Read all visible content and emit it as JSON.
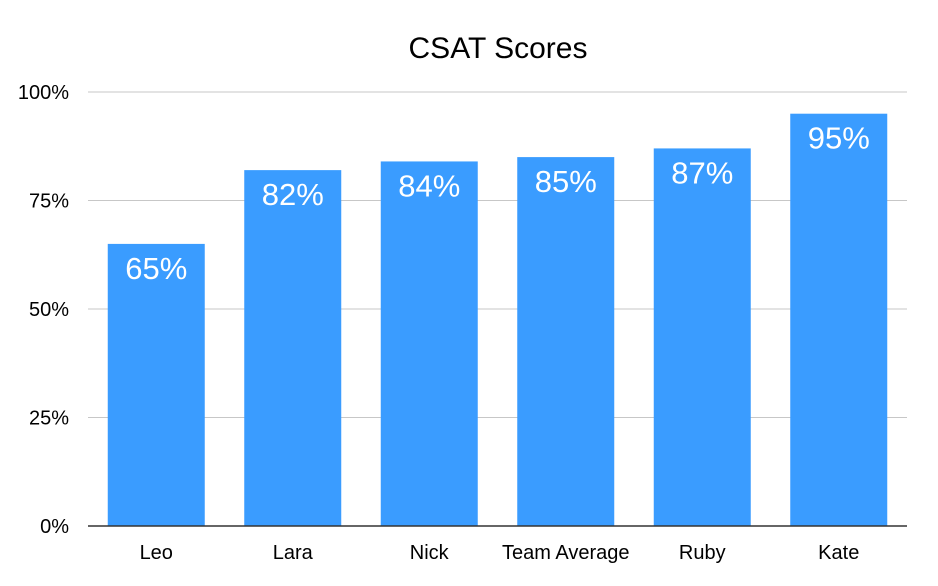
{
  "chart_data": {
    "type": "bar",
    "title": "CSAT Scores",
    "categories": [
      "Leo",
      "Lara",
      "Nick",
      "Team Average",
      "Ruby",
      "Kate"
    ],
    "values": [
      65,
      82,
      84,
      85,
      87,
      95
    ],
    "data_labels": [
      "65%",
      "82%",
      "84%",
      "85%",
      "87%",
      "95%"
    ],
    "ylim": [
      0,
      100
    ],
    "y_ticks": [
      0,
      25,
      50,
      75,
      100
    ],
    "y_tick_labels": [
      "0%",
      "25%",
      "50%",
      "75%",
      "100%"
    ],
    "grid": true,
    "legend": "none",
    "xlabel": "",
    "ylabel": "",
    "colors": {
      "bar": "#3a9cff",
      "data_label": "#ffffff",
      "gridline": "#c7c7c7",
      "baseline": "#333333",
      "text": "#000000"
    }
  }
}
